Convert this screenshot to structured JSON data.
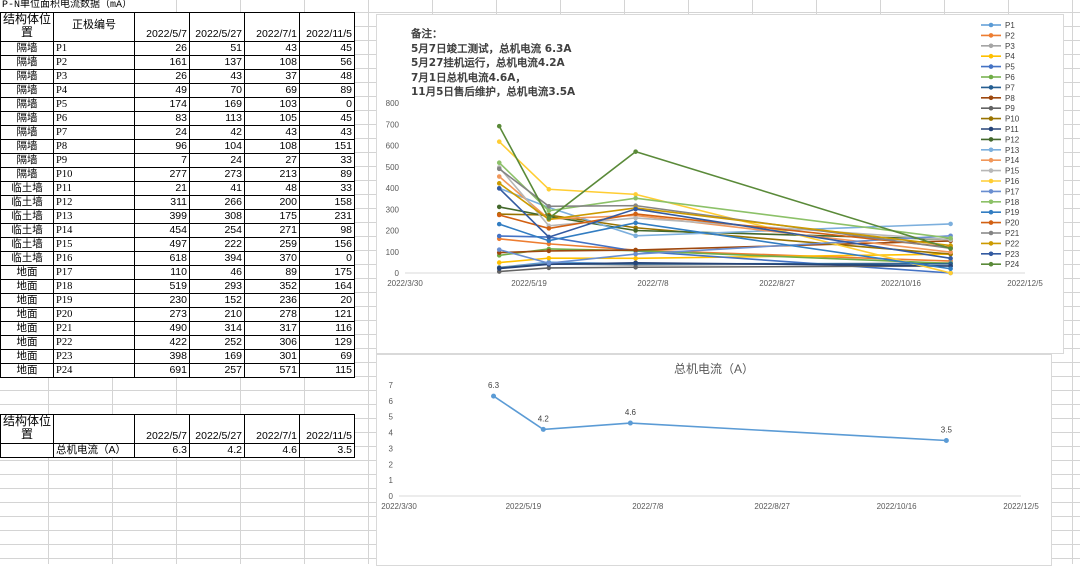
{
  "sheet": {
    "title": "P-N单位面积电流数据（mA）"
  },
  "table": {
    "header_struct": "结构体位置",
    "header_code": "正极编号",
    "dates": [
      "2022/5/7",
      "2022/5/27",
      "2022/7/1",
      "2022/11/5"
    ],
    "rows": [
      {
        "struct": "隔墙",
        "code": "P1",
        "v": [
          "26",
          "51",
          "43",
          "45"
        ]
      },
      {
        "struct": "隔墙",
        "code": "P2",
        "v": [
          "161",
          "137",
          "108",
          "56"
        ]
      },
      {
        "struct": "隔墙",
        "code": "P3",
        "v": [
          "26",
          "43",
          "37",
          "48"
        ]
      },
      {
        "struct": "隔墙",
        "code": "P4",
        "v": [
          "49",
          "70",
          "69",
          "89"
        ]
      },
      {
        "struct": "隔墙",
        "code": "P5",
        "v": [
          "174",
          "169",
          "103",
          "0"
        ]
      },
      {
        "struct": "隔墙",
        "code": "P6",
        "v": [
          "83",
          "113",
          "105",
          "45"
        ]
      },
      {
        "struct": "隔墙",
        "code": "P7",
        "v": [
          "24",
          "42",
          "43",
          "43"
        ]
      },
      {
        "struct": "隔墙",
        "code": "P8",
        "v": [
          "96",
          "104",
          "108",
          "151"
        ]
      },
      {
        "struct": "隔墙",
        "code": "P9",
        "v": [
          "7",
          "24",
          "27",
          "33"
        ]
      },
      {
        "struct": "隔墙",
        "code": "P10",
        "v": [
          "277",
          "273",
          "213",
          "89"
        ]
      },
      {
        "struct": "临土墙",
        "code": "P11",
        "v": [
          "21",
          "41",
          "48",
          "33"
        ]
      },
      {
        "struct": "临土墙",
        "code": "P12",
        "v": [
          "311",
          "266",
          "200",
          "158"
        ]
      },
      {
        "struct": "临土墙",
        "code": "P13",
        "v": [
          "399",
          "308",
          "175",
          "231"
        ]
      },
      {
        "struct": "临土墙",
        "code": "P14",
        "v": [
          "454",
          "254",
          "271",
          "98"
        ]
      },
      {
        "struct": "临土墙",
        "code": "P15",
        "v": [
          "497",
          "222",
          "259",
          "156"
        ]
      },
      {
        "struct": "临土墙",
        "code": "P16",
        "v": [
          "618",
          "394",
          "370",
          "0"
        ]
      },
      {
        "struct": "地面",
        "code": "P17",
        "v": [
          "110",
          "46",
          "89",
          "175"
        ]
      },
      {
        "struct": "地面",
        "code": "P18",
        "v": [
          "519",
          "293",
          "352",
          "164"
        ]
      },
      {
        "struct": "地面",
        "code": "P19",
        "v": [
          "230",
          "152",
          "236",
          "20"
        ]
      },
      {
        "struct": "地面",
        "code": "P20",
        "v": [
          "273",
          "210",
          "278",
          "121"
        ]
      },
      {
        "struct": "地面",
        "code": "P21",
        "v": [
          "490",
          "314",
          "317",
          "116"
        ]
      },
      {
        "struct": "地面",
        "code": "P22",
        "v": [
          "422",
          "252",
          "306",
          "129"
        ]
      },
      {
        "struct": "地面",
        "code": "P23",
        "v": [
          "398",
          "169",
          "301",
          "69"
        ]
      },
      {
        "struct": "地面",
        "code": "P24",
        "v": [
          "691",
          "257",
          "571",
          "115"
        ]
      }
    ]
  },
  "summary": {
    "header_struct": "结构体位置",
    "dates": [
      "2022/5/7",
      "2022/5/27",
      "2022/7/1",
      "2022/11/5"
    ],
    "label": "总机电流（A）",
    "values": [
      "6.3",
      "4.2",
      "4.6",
      "3.5"
    ]
  },
  "note": {
    "lines": [
      "备注：",
      "5月7日竣工测试，总机电流 6.3A",
      "5月27挂机运行，总机电流4.2A",
      "7月1日总机电流4.6A，",
      "11月5日售后维护，总机电流3.5A"
    ]
  },
  "chart_data": [
    {
      "type": "line",
      "title": "",
      "x": [
        "2022/5/7",
        "2022/5/27",
        "2022/7/1",
        "2022/11/5"
      ],
      "x_tick_labels": [
        "2022/3/30",
        "2022/5/19",
        "2022/7/8",
        "2022/8/27",
        "2022/10/16",
        "2022/12/5"
      ],
      "xlim": [
        "2022/3/30",
        "2022/12/5"
      ],
      "ylim": [
        0,
        800
      ],
      "y_ticks": [
        0,
        100,
        200,
        300,
        400,
        500,
        600,
        700,
        800
      ],
      "grid": false,
      "legend": "right",
      "colors": [
        "#5b9bd5",
        "#ed7d31",
        "#a5a5a5",
        "#ffc000",
        "#4472c4",
        "#70ad47",
        "#255e91",
        "#9e480e",
        "#636363",
        "#997300",
        "#264478",
        "#43682b",
        "#7cafdd",
        "#f1975a",
        "#b7b7b7",
        "#ffcd33",
        "#698ed0",
        "#8cc168",
        "#327dc2",
        "#d26012",
        "#848484",
        "#cc9a00",
        "#335aa1",
        "#5a8a39"
      ],
      "series": [
        {
          "name": "P1",
          "values": [
            26,
            51,
            43,
            45
          ]
        },
        {
          "name": "P2",
          "values": [
            161,
            137,
            108,
            56
          ]
        },
        {
          "name": "P3",
          "values": [
            26,
            43,
            37,
            48
          ]
        },
        {
          "name": "P4",
          "values": [
            49,
            70,
            69,
            89
          ]
        },
        {
          "name": "P5",
          "values": [
            174,
            169,
            103,
            0
          ]
        },
        {
          "name": "P6",
          "values": [
            83,
            113,
            105,
            45
          ]
        },
        {
          "name": "P7",
          "values": [
            24,
            42,
            43,
            43
          ]
        },
        {
          "name": "P8",
          "values": [
            96,
            104,
            108,
            151
          ]
        },
        {
          "name": "P9",
          "values": [
            7,
            24,
            27,
            33
          ]
        },
        {
          "name": "P10",
          "values": [
            277,
            273,
            213,
            89
          ]
        },
        {
          "name": "P11",
          "values": [
            21,
            41,
            48,
            33
          ]
        },
        {
          "name": "P12",
          "values": [
            311,
            266,
            200,
            158
          ]
        },
        {
          "name": "P13",
          "values": [
            399,
            308,
            175,
            231
          ]
        },
        {
          "name": "P14",
          "values": [
            454,
            254,
            271,
            98
          ]
        },
        {
          "name": "P15",
          "values": [
            497,
            222,
            259,
            156
          ]
        },
        {
          "name": "P16",
          "values": [
            618,
            394,
            370,
            0
          ]
        },
        {
          "name": "P17",
          "values": [
            110,
            46,
            89,
            175
          ]
        },
        {
          "name": "P18",
          "values": [
            519,
            293,
            352,
            164
          ]
        },
        {
          "name": "P19",
          "values": [
            230,
            152,
            236,
            20
          ]
        },
        {
          "name": "P20",
          "values": [
            273,
            210,
            278,
            121
          ]
        },
        {
          "name": "P21",
          "values": [
            490,
            314,
            317,
            116
          ]
        },
        {
          "name": "P22",
          "values": [
            422,
            252,
            306,
            129
          ]
        },
        {
          "name": "P23",
          "values": [
            398,
            169,
            301,
            69
          ]
        },
        {
          "name": "P24",
          "values": [
            691,
            257,
            571,
            115
          ]
        }
      ]
    },
    {
      "type": "line",
      "title": "总机电流（A）",
      "x": [
        "2022/5/7",
        "2022/5/27",
        "2022/7/1",
        "2022/11/5"
      ],
      "x_tick_labels": [
        "2022/3/30",
        "2022/5/19",
        "2022/7/8",
        "2022/8/27",
        "2022/10/16",
        "2022/12/5"
      ],
      "xlim": [
        "2022/3/30",
        "2022/12/5"
      ],
      "ylim": [
        0,
        7
      ],
      "y_ticks": [
        0,
        1,
        2,
        3,
        4,
        5,
        6,
        7
      ],
      "grid": false,
      "legend": "none",
      "color": "#5b9bd5",
      "series": [
        {
          "values": [
            6.3,
            4.2,
            4.6,
            3.5
          ],
          "data_labels": [
            "6.3",
            "4.2",
            "4.6",
            "3.5"
          ]
        }
      ]
    }
  ]
}
